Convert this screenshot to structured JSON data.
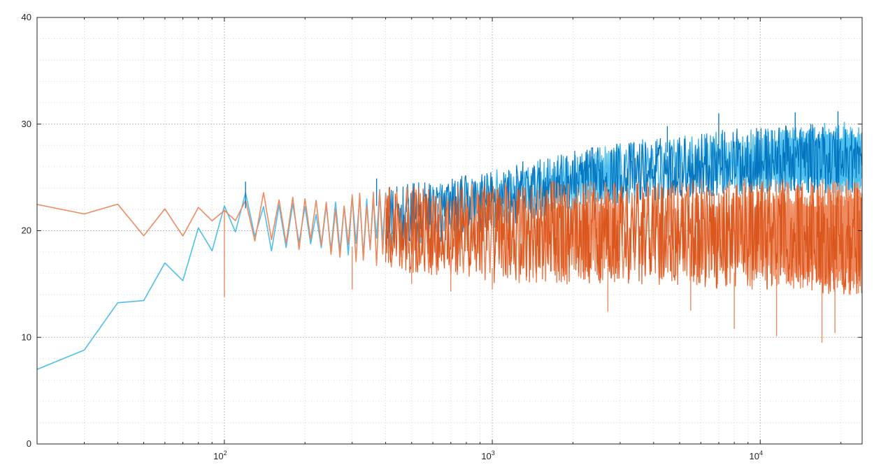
{
  "chart_data": {
    "type": "line",
    "title": "",
    "xlabel": "",
    "ylabel": "",
    "x_scale": "log",
    "xlim": [
      20,
      24000
    ],
    "ylim": [
      0,
      40
    ],
    "grid": true,
    "minor_grid": true,
    "x_ticks": [
      {
        "value": 100,
        "base": "10",
        "exp": "2"
      },
      {
        "value": 1000,
        "base": "10",
        "exp": "3"
      },
      {
        "value": 10000,
        "base": "10",
        "exp": "4"
      }
    ],
    "y_ticks": [
      0,
      10,
      20,
      30,
      40
    ],
    "series": [
      {
        "color": "#0072bd",
        "light_color": "#4dbeee",
        "x": [
          20,
          21,
          23,
          26,
          30,
          34,
          38,
          42,
          46,
          50,
          55,
          60,
          65,
          70,
          75,
          80,
          85,
          90,
          95,
          100,
          110,
          120,
          130,
          150,
          170,
          200,
          250,
          300,
          400,
          500,
          700,
          1000,
          1400,
          2000,
          3000,
          5000,
          7000,
          10000,
          15000,
          20000,
          24000
        ],
        "env_hi": [
          7,
          7.5,
          9,
          9.8,
          10.5,
          12,
          13.2,
          14.2,
          15,
          15.8,
          17,
          18,
          18.6,
          19.2,
          20,
          20.8,
          21.4,
          22,
          22.4,
          23,
          23.5,
          23.6,
          23.6,
          23.5,
          23.2,
          22.8,
          23,
          23.4,
          24,
          24.5,
          25,
          25.8,
          26.5,
          27.5,
          28.3,
          29,
          29.5,
          29.8,
          30,
          30.2,
          30
        ],
        "env_lo": [
          6.2,
          6.3,
          8.8,
          9,
          8.8,
          8.5,
          9.5,
          11,
          12.5,
          13,
          13.2,
          13.5,
          14.5,
          15.2,
          15.5,
          16.5,
          17,
          17.5,
          18,
          18.5,
          19,
          19,
          18.5,
          18,
          17.8,
          17.5,
          17.5,
          17.5,
          18,
          18.5,
          19,
          20,
          21,
          22,
          22.5,
          23,
          23.2,
          23.4,
          23.5,
          23.5,
          23.5
        ],
        "spike_hi": [
          {
            "x": 120,
            "y": 24.6
          },
          {
            "x": 370,
            "y": 24.9
          },
          {
            "x": 1300,
            "y": 26.5
          },
          {
            "x": 4500,
            "y": 29.8
          },
          {
            "x": 7000,
            "y": 31
          },
          {
            "x": 13500,
            "y": 31.1
          },
          {
            "x": 19500,
            "y": 31.2
          }
        ]
      },
      {
        "color": "#d95319",
        "light_color": "#ee8a5e",
        "x": [
          20,
          21,
          23,
          26,
          30,
          34,
          38,
          42,
          46,
          50,
          55,
          60,
          65,
          70,
          75,
          80,
          85,
          90,
          95,
          100,
          110,
          120,
          130,
          150,
          170,
          200,
          250,
          300,
          400,
          500,
          700,
          1000,
          1400,
          2000,
          3000,
          5000,
          7000,
          10000,
          15000,
          20000,
          24000
        ],
        "env_hi": [
          22.5,
          22.4,
          22.2,
          22.3,
          22.5,
          22.5,
          22.6,
          22.7,
          22.8,
          23,
          23,
          23,
          22.8,
          22.6,
          22.5,
          22.4,
          22.4,
          22.4,
          22.3,
          22.3,
          22.6,
          23.2,
          23.8,
          24,
          23.6,
          23.2,
          23.4,
          23.8,
          24.2,
          24.3,
          24.4,
          24.5,
          24.6,
          24.7,
          24.7,
          24.8,
          24.8,
          24.8,
          24.8,
          24.8,
          24.6
        ],
        "env_lo": [
          22.3,
          21.5,
          21.3,
          21.3,
          21.5,
          20.2,
          19,
          18.6,
          19.2,
          19,
          18.5,
          17.5,
          17.5,
          18.5,
          19.3,
          19.5,
          20.5,
          20.5,
          21,
          20.5,
          20.5,
          19.5,
          19,
          18.5,
          18,
          18,
          17.5,
          17,
          16.5,
          16,
          15.5,
          15,
          15,
          15,
          15,
          14.8,
          14.6,
          14.5,
          14.2,
          14,
          14
        ],
        "spike_lo": [
          {
            "x": 100,
            "y": 13.8
          },
          {
            "x": 300,
            "y": 14.5
          },
          {
            "x": 500,
            "y": 15
          },
          {
            "x": 700,
            "y": 14.3
          },
          {
            "x": 1000,
            "y": 14.5
          },
          {
            "x": 2700,
            "y": 12.4
          },
          {
            "x": 5500,
            "y": 12.5
          },
          {
            "x": 8000,
            "y": 10.8
          },
          {
            "x": 11500,
            "y": 10.1
          },
          {
            "x": 17000,
            "y": 9.5
          },
          {
            "x": 19000,
            "y": 10.4
          }
        ]
      }
    ]
  }
}
